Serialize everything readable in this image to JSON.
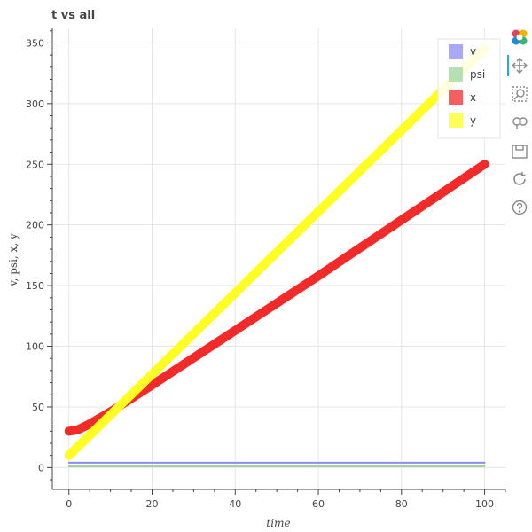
{
  "chart_data": {
    "type": "line",
    "title": "t vs all",
    "xlabel": "time",
    "ylabel": "v, psi, x, y",
    "xlim": [
      -4,
      105
    ],
    "ylim": [
      -18,
      362
    ],
    "xticks": [
      0,
      20,
      40,
      60,
      80,
      100
    ],
    "yticks": [
      0,
      50,
      100,
      150,
      200,
      250,
      300,
      350
    ],
    "grid": true,
    "legend_position": "top-right",
    "series": [
      {
        "name": "v",
        "color": "#8c8cf5",
        "x": [
          0,
          100
        ],
        "y": [
          4,
          4
        ]
      },
      {
        "name": "psi",
        "color": "#9fd49f",
        "x": [
          0,
          100
        ],
        "y": [
          1,
          1
        ]
      },
      {
        "name": "x",
        "color": "#f22a2a",
        "x": [
          0,
          2,
          5,
          10,
          20,
          40,
          60,
          80,
          100
        ],
        "y": [
          30,
          31,
          36,
          46,
          68,
          113,
          158,
          204,
          250
        ]
      },
      {
        "name": "y",
        "color": "#ffff22",
        "x": [
          0,
          20,
          40,
          60,
          80,
          100
        ],
        "y": [
          10,
          77,
          144,
          211,
          278,
          345
        ]
      }
    ]
  },
  "toolbar": {
    "icons": [
      "bokeh-logo-icon",
      "pan-icon",
      "box-zoom-icon",
      "wheel-zoom-icon",
      "save-icon",
      "reset-icon",
      "help-icon"
    ]
  }
}
